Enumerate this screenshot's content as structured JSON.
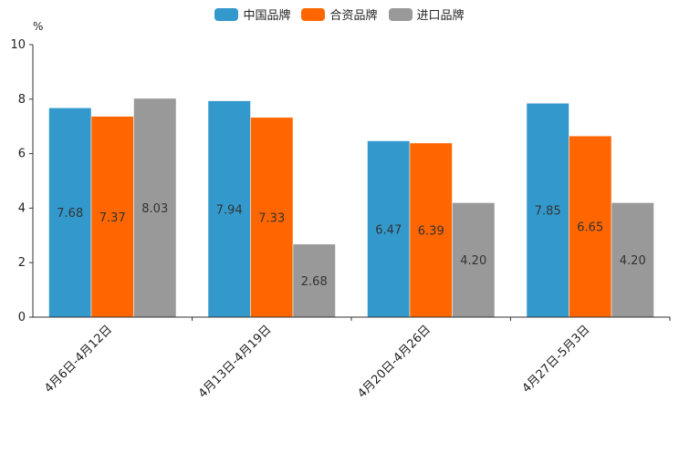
{
  "chart_data": {
    "type": "bar",
    "title": "",
    "xlabel": "",
    "ylabel": "%",
    "ylim": [
      0,
      10
    ],
    "yticks": [
      "0",
      "2",
      "4",
      "6",
      "8",
      "10"
    ],
    "categories": [
      "4月6日-4月12日",
      "4月13日-4月19日",
      "4月20日-4月26日",
      "4月27日-5月3日"
    ],
    "series": [
      {
        "name": "中国品牌",
        "color": "#3399cc",
        "values": [
          7.68,
          7.94,
          6.47,
          7.85
        ],
        "labels": [
          "7.68",
          "7.94",
          "6.47",
          "7.85"
        ]
      },
      {
        "name": "合资品牌",
        "color": "#ff6600",
        "values": [
          7.37,
          7.33,
          6.39,
          6.65
        ],
        "labels": [
          "7.37",
          "7.33",
          "6.39",
          "6.65"
        ]
      },
      {
        "name": "进口品牌",
        "color": "#999999",
        "values": [
          8.03,
          2.68,
          4.2,
          4.2
        ],
        "labels": [
          "8.03",
          "2.68",
          "4.20",
          "4.20"
        ]
      }
    ],
    "legend_position": "top-center",
    "grid": false
  }
}
